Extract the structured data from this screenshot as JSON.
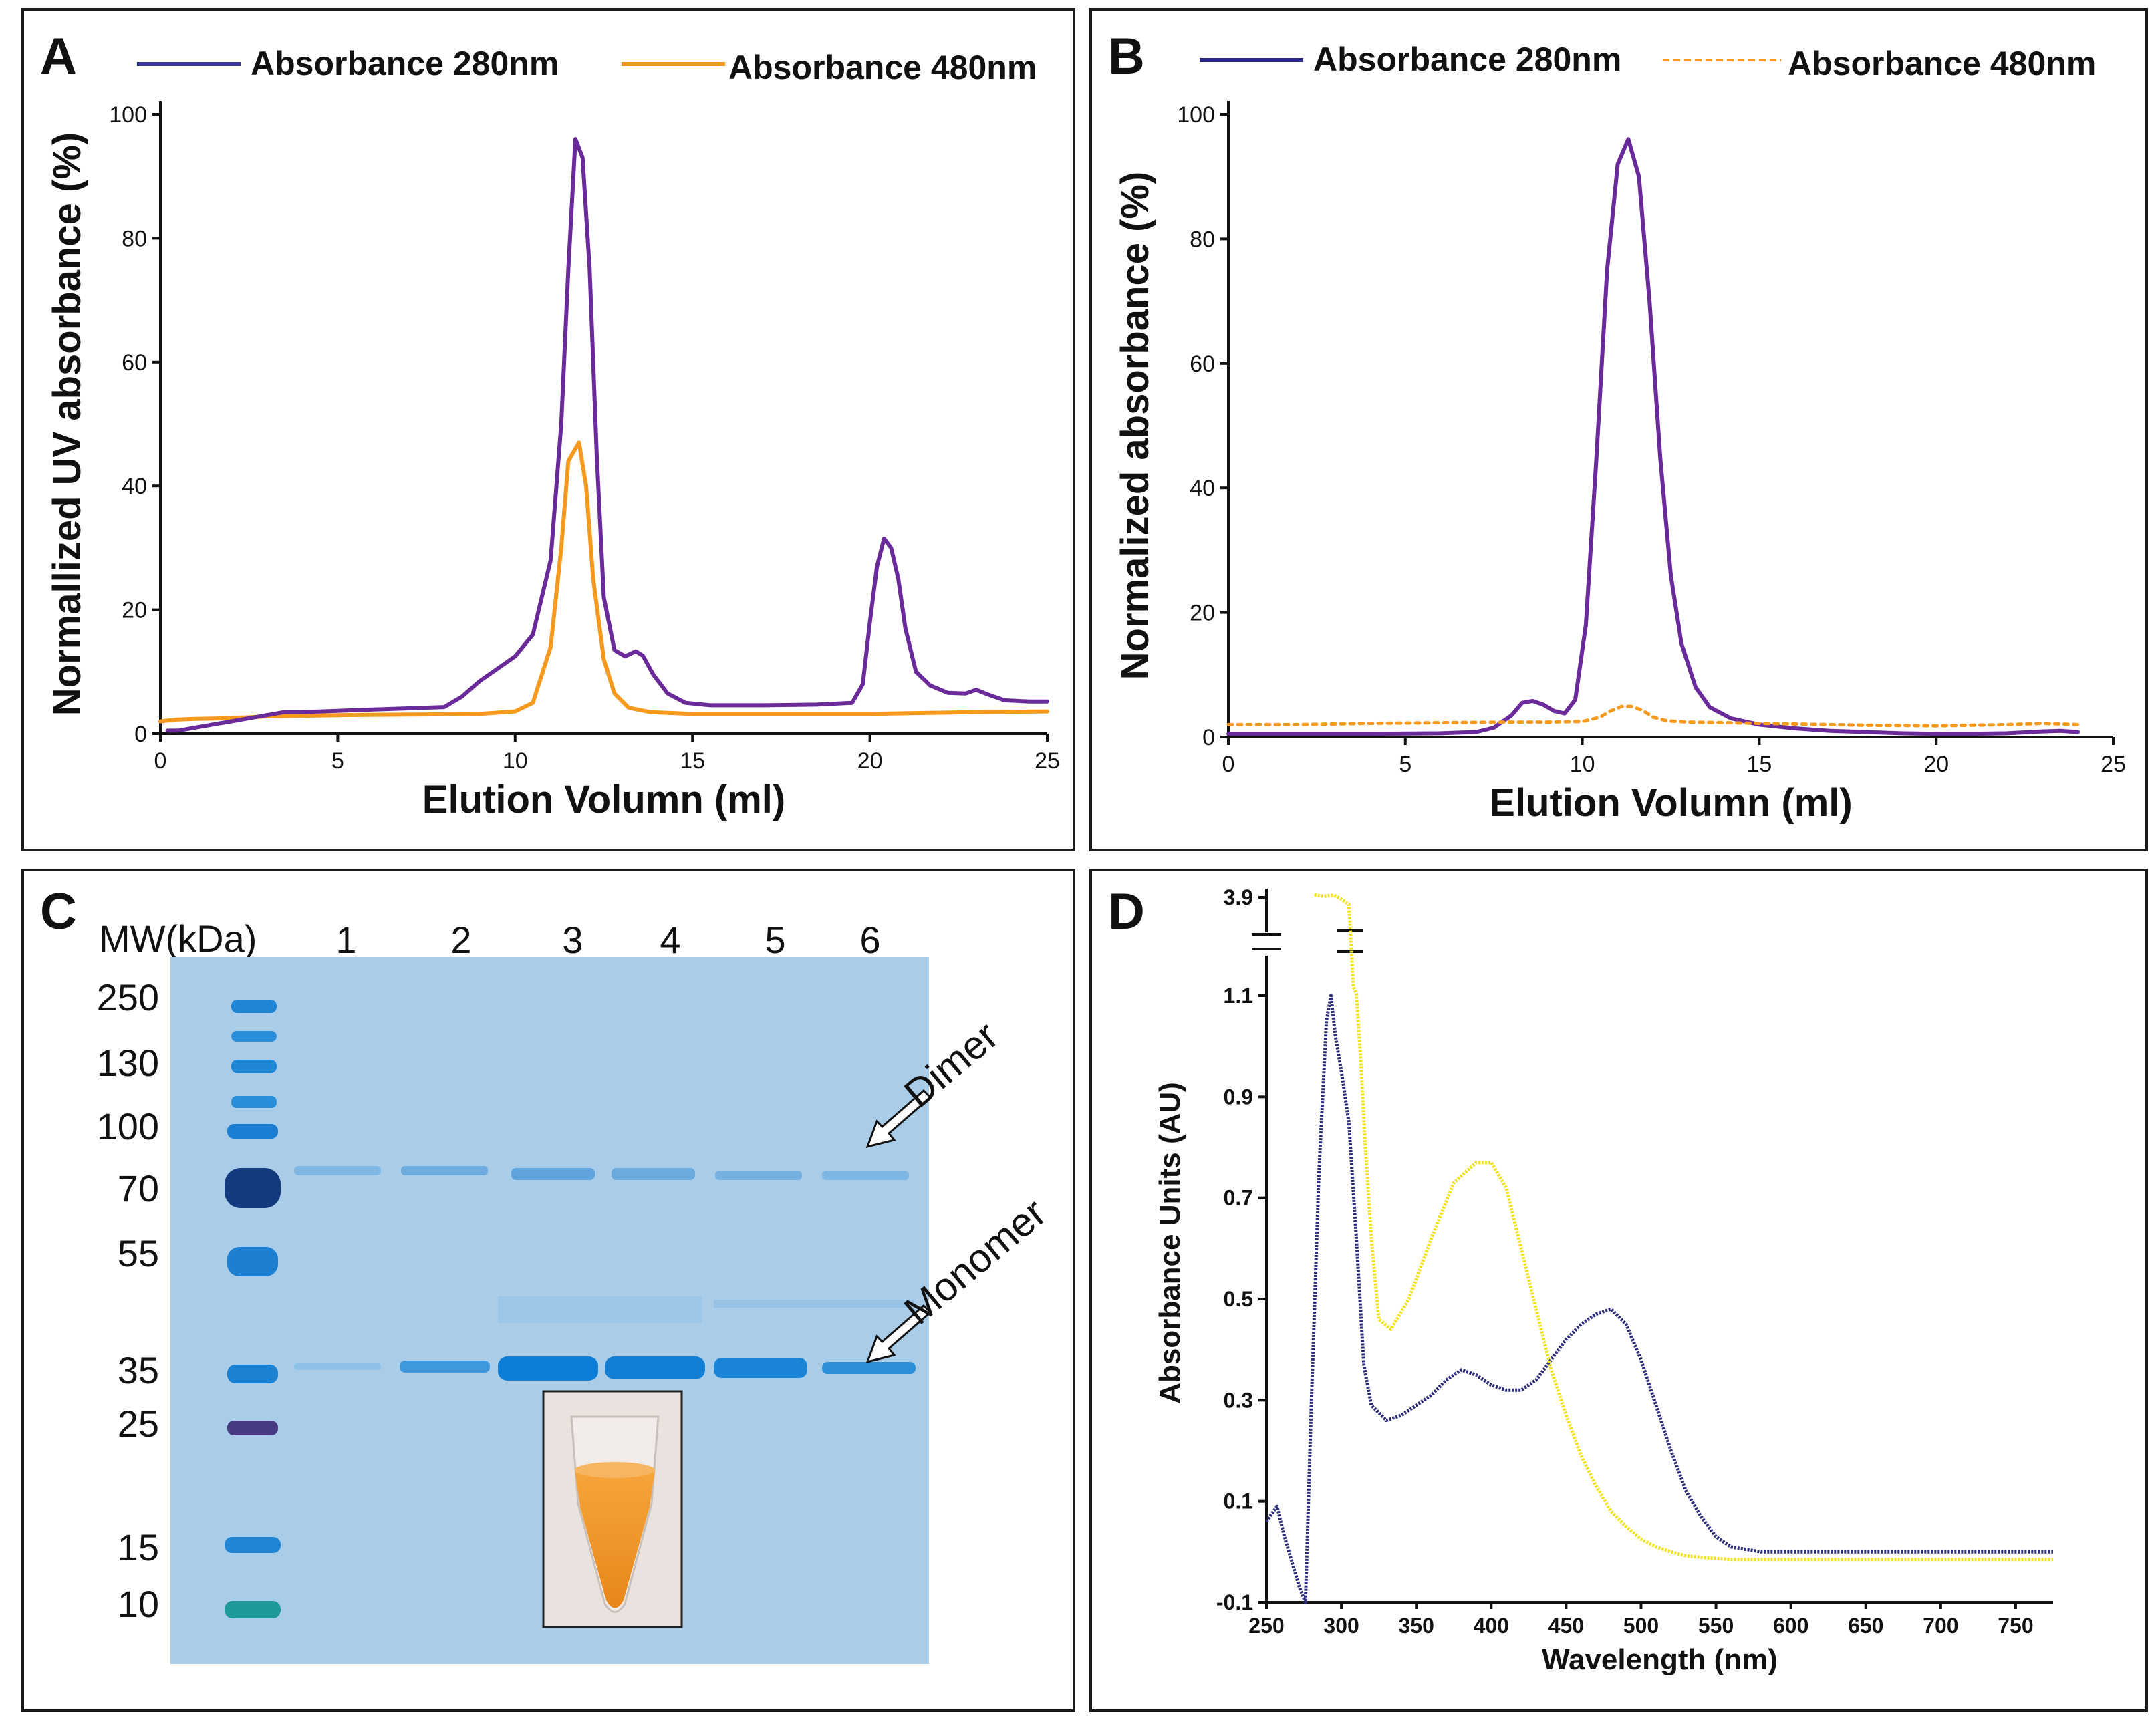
{
  "colors": {
    "a280": "#6a2a9a",
    "a480": "#f59a1e",
    "legend_a280_a": "#3a3a9a",
    "legend_a280_b": "#2a2a8a",
    "d_series1": "#2c2c7a",
    "d_series2": "#f2e21a",
    "gel_bg": "#a9cde9"
  },
  "chart_data": [
    {
      "panel": "A",
      "type": "line",
      "xlabel": "Elution Volumn (ml)",
      "ylabel": "Normallized UV absorbance (%)",
      "xlim": [
        0,
        25
      ],
      "ylim": [
        0,
        100
      ],
      "xticks": [
        0,
        5,
        10,
        15,
        20,
        25
      ],
      "yticks": [
        0,
        20,
        40,
        60,
        80,
        100
      ],
      "legend": [
        "Absorbance 280nm",
        "Absorbance 480nm"
      ],
      "series": [
        {
          "name": "Absorbance 280nm",
          "dashed": false,
          "x": [
            0.2,
            0.5,
            1,
            1.5,
            2,
            2.5,
            3,
            3.5,
            4,
            5,
            6,
            7,
            8,
            8.5,
            9,
            9.5,
            10,
            10.5,
            11,
            11.3,
            11.5,
            11.7,
            11.9,
            12.1,
            12.3,
            12.5,
            12.8,
            13.1,
            13.4,
            13.6,
            13.9,
            14.3,
            14.8,
            15.5,
            17,
            18.5,
            19.5,
            19.8,
            20.0,
            20.2,
            20.4,
            20.6,
            20.8,
            21.0,
            21.3,
            21.7,
            22.2,
            22.7,
            23.0,
            23.3,
            23.8,
            24.5,
            25
          ],
          "values": [
            0.5,
            0.5,
            1,
            1.5,
            2,
            2.5,
            3,
            3.5,
            3.5,
            3.7,
            3.9,
            4.1,
            4.3,
            6,
            8.5,
            10.5,
            12.5,
            16,
            28,
            50,
            75,
            96,
            93,
            75,
            45,
            22,
            13.5,
            12.5,
            13.3,
            12.6,
            9.5,
            6.5,
            5,
            4.6,
            4.6,
            4.7,
            5,
            8,
            18,
            27,
            31.5,
            30,
            25,
            17,
            10,
            7.8,
            6.6,
            6.5,
            7.1,
            6.4,
            5.4,
            5.2,
            5.2
          ]
        },
        {
          "name": "Absorbance 480nm",
          "dashed": false,
          "x": [
            0,
            0.5,
            1,
            2,
            3,
            5,
            7,
            9,
            10,
            10.5,
            11,
            11.3,
            11.5,
            11.8,
            12.0,
            12.2,
            12.5,
            12.8,
            13.2,
            13.8,
            15,
            18,
            20,
            22,
            23,
            25
          ],
          "values": [
            2,
            2.3,
            2.4,
            2.5,
            2.8,
            3,
            3.1,
            3.2,
            3.6,
            5,
            14,
            30,
            44,
            47,
            40,
            25,
            12,
            6.5,
            4.2,
            3.5,
            3.2,
            3.2,
            3.2,
            3.4,
            3.5,
            3.6
          ]
        }
      ]
    },
    {
      "panel": "B",
      "type": "line",
      "xlabel": "Elution Volumn (ml)",
      "ylabel": "Normalized absorbance (%)",
      "xlim": [
        0,
        25
      ],
      "ylim": [
        0,
        100
      ],
      "xticks": [
        0,
        5,
        10,
        15,
        20,
        25
      ],
      "yticks": [
        0,
        20,
        40,
        60,
        80,
        100
      ],
      "legend": [
        "Absorbance 280nm",
        "Absorbance 480nm"
      ],
      "series": [
        {
          "name": "Absorbance 280nm",
          "dashed": false,
          "x": [
            0,
            2,
            4,
            6,
            7,
            7.5,
            8,
            8.3,
            8.6,
            8.9,
            9.2,
            9.5,
            9.8,
            10.1,
            10.4,
            10.7,
            11.0,
            11.3,
            11.6,
            11.9,
            12.2,
            12.5,
            12.8,
            13.2,
            13.6,
            14.2,
            15,
            16,
            17,
            18,
            19,
            20,
            21,
            22,
            23,
            23.5,
            24
          ],
          "values": [
            0.5,
            0.5,
            0.5,
            0.6,
            0.8,
            1.5,
            3.5,
            5.5,
            5.8,
            5.2,
            4.2,
            3.8,
            6,
            18,
            45,
            75,
            92,
            96,
            90,
            70,
            45,
            26,
            15,
            8,
            4.8,
            3,
            2,
            1.4,
            1,
            0.8,
            0.6,
            0.5,
            0.5,
            0.6,
            0.9,
            1,
            0.8
          ]
        },
        {
          "name": "Absorbance 480nm",
          "dashed": true,
          "x": [
            0,
            2,
            4,
            6,
            8,
            9,
            10,
            10.5,
            10.8,
            11.1,
            11.4,
            11.7,
            12.0,
            12.4,
            13,
            15,
            18,
            20,
            22,
            23,
            24
          ],
          "values": [
            2,
            2,
            2.2,
            2.3,
            2.4,
            2.4,
            2.5,
            3.2,
            4.2,
            4.9,
            4.9,
            4.3,
            3.2,
            2.6,
            2.4,
            2.2,
            1.9,
            1.8,
            2,
            2.2,
            2
          ]
        }
      ]
    },
    {
      "panel": "D",
      "type": "line",
      "xlabel": "Wavelength (nm)",
      "ylabel": "Absorbance Units (AU)",
      "xlim": [
        250,
        775
      ],
      "ylim": [
        -0.1,
        3.9
      ],
      "axis_break": true,
      "xticks": [
        250,
        300,
        350,
        400,
        450,
        500,
        550,
        600,
        650,
        700,
        750
      ],
      "yticks": [
        -0.1,
        0.1,
        0.3,
        0.5,
        0.7,
        0.9,
        1.1,
        3.9
      ],
      "series": [
        {
          "name": "series-navy",
          "x": [
            250,
            257,
            262,
            267,
            272,
            276,
            280,
            285,
            290,
            293,
            296,
            300,
            305,
            310,
            315,
            320,
            330,
            340,
            350,
            360,
            370,
            380,
            390,
            400,
            410,
            420,
            430,
            440,
            450,
            460,
            470,
            480,
            490,
            500,
            510,
            520,
            530,
            540,
            550,
            560,
            570,
            580,
            600,
            650,
            700,
            775
          ],
          "values": [
            0.06,
            0.09,
            0.03,
            -0.02,
            -0.07,
            -0.1,
            0.3,
            0.75,
            1.05,
            1.1,
            1.02,
            0.95,
            0.85,
            0.62,
            0.37,
            0.29,
            0.26,
            0.27,
            0.29,
            0.31,
            0.34,
            0.36,
            0.35,
            0.33,
            0.32,
            0.32,
            0.34,
            0.38,
            0.42,
            0.45,
            0.47,
            0.48,
            0.45,
            0.38,
            0.29,
            0.2,
            0.12,
            0.07,
            0.03,
            0.01,
            0.005,
            0.0,
            0.0,
            0.0,
            0.0,
            0.0
          ]
        },
        {
          "name": "series-yellow",
          "x": [
            282,
            288,
            295,
            300,
            305,
            308,
            310,
            313,
            316,
            320,
            325,
            333,
            345,
            360,
            375,
            390,
            400,
            410,
            420,
            430,
            440,
            450,
            460,
            470,
            480,
            490,
            500,
            510,
            520,
            530,
            545,
            560,
            600,
            700,
            775
          ],
          "values": [
            3.97,
            3.93,
            3.96,
            3.85,
            3.7,
            1.35,
            1.15,
            0.97,
            0.8,
            0.62,
            0.46,
            0.44,
            0.5,
            0.62,
            0.73,
            0.77,
            0.77,
            0.72,
            0.6,
            0.48,
            0.36,
            0.27,
            0.19,
            0.13,
            0.08,
            0.05,
            0.025,
            0.01,
            0.0,
            -0.008,
            -0.012,
            -0.015,
            -0.015,
            -0.015,
            -0.015
          ]
        }
      ]
    }
  ],
  "panel_a": {
    "letter": "A",
    "legend_1": "Absorbance 280nm",
    "legend_2": "Absorbance 480nm"
  },
  "panel_b": {
    "letter": "B",
    "legend_1": "Absorbance 280nm",
    "legend_2": "Absorbance 480nm"
  },
  "panel_c": {
    "letter": "C",
    "mw_header": "MW(kDa)",
    "mw_markers": [
      "250",
      "130",
      "100",
      "70",
      "55",
      "35",
      "25",
      "15",
      "10"
    ],
    "lanes": [
      "1",
      "2",
      "3",
      "4",
      "5",
      "6"
    ],
    "dimer_label": "Dimer",
    "monomer_label": "Monomer"
  },
  "panel_d": {
    "letter": "D"
  }
}
